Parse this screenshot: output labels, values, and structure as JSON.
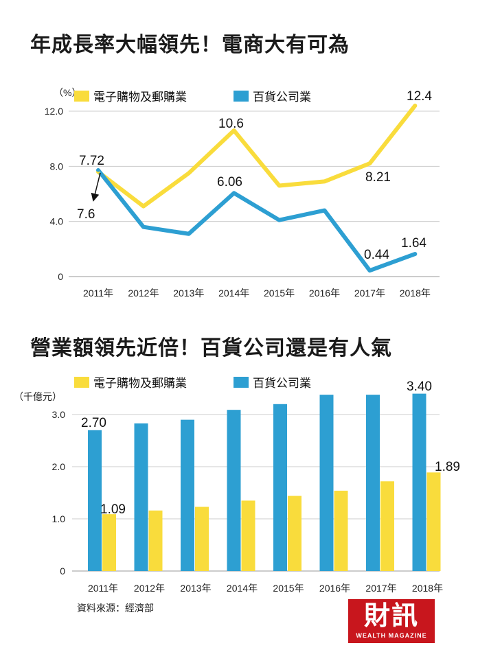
{
  "colors": {
    "ecommerce": "#f9dc3c",
    "department": "#2d9fd2",
    "grid": "#cccccc",
    "logo": "#c8161d"
  },
  "titles": {
    "top": "年成長率大幅領先！電商大有可為",
    "bottom": "營業額領先近倍！百貨公司還是有人氣"
  },
  "source": "資料來源：經濟部",
  "logo": {
    "main": "財訊",
    "sub": "WEALTH MAGAZINE"
  },
  "chart_data": [
    {
      "type": "line",
      "unit_label": "（%）",
      "categories": [
        "2011年",
        "2012年",
        "2013年",
        "2014年",
        "2015年",
        "2016年",
        "2017年",
        "2018年"
      ],
      "ylim": [
        0,
        12
      ],
      "yticks": [
        "0",
        "4.0",
        "8.0",
        "12.0"
      ],
      "grid": true,
      "legend": "top",
      "series": [
        {
          "name": "電子購物及郵購業",
          "values": [
            7.6,
            5.1,
            7.5,
            10.6,
            6.6,
            6.9,
            8.21,
            12.4
          ]
        },
        {
          "name": "百貨公司業",
          "values": [
            7.72,
            3.6,
            3.1,
            6.06,
            4.1,
            4.8,
            0.44,
            1.64
          ]
        }
      ],
      "annotations": [
        "7.72",
        "7.6",
        "10.6",
        "6.06",
        "8.21",
        "0.44",
        "1.64",
        "12.4"
      ]
    },
    {
      "type": "bar",
      "unit_label": "（千億元）",
      "categories": [
        "2011年",
        "2012年",
        "2013年",
        "2014年",
        "2015年",
        "2016年",
        "2017年",
        "2018年"
      ],
      "ylim": [
        0,
        3.4
      ],
      "yticks": [
        "0",
        "1.0",
        "2.0",
        "3.0"
      ],
      "grid": true,
      "legend": "top",
      "series": [
        {
          "name": "電子購物及郵購業",
          "values": [
            1.09,
            1.16,
            1.23,
            1.35,
            1.44,
            1.54,
            1.72,
            1.89
          ]
        },
        {
          "name": "百貨公司業",
          "values": [
            2.7,
            2.83,
            2.9,
            3.09,
            3.2,
            3.38,
            3.38,
            3.4
          ]
        }
      ],
      "annotations": [
        "2.70",
        "1.09",
        "3.40",
        "1.89"
      ]
    }
  ]
}
